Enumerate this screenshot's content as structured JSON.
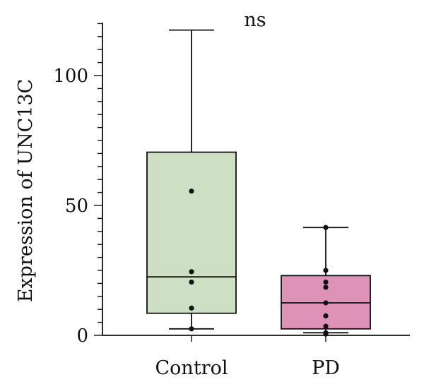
{
  "chart_data": {
    "type": "box",
    "title": "",
    "xlabel": "",
    "ylabel": "Expression of UNC13C",
    "ylim": [
      0,
      120
    ],
    "yticks": [
      0,
      50,
      100
    ],
    "minor_tick_step": 5,
    "grid": false,
    "legend": "none",
    "annotation": "ns",
    "categories": [
      "Control",
      "PD"
    ],
    "boxes": [
      {
        "name": "Control",
        "color": "#cde0c3",
        "min": 2.5,
        "q1": 8.5,
        "median": 22.5,
        "q3": 70.5,
        "max": 117.5,
        "points": [
          2.5,
          10.5,
          20.5,
          24.5,
          55.5
        ]
      },
      {
        "name": "PD",
        "color": "#de92b8",
        "min": 1,
        "q1": 2.5,
        "median": 12.5,
        "q3": 23,
        "max": 41.5,
        "points": [
          0.5,
          1,
          3.5,
          7.5,
          12.5,
          18.5,
          20.5,
          25,
          41.5
        ]
      }
    ]
  }
}
